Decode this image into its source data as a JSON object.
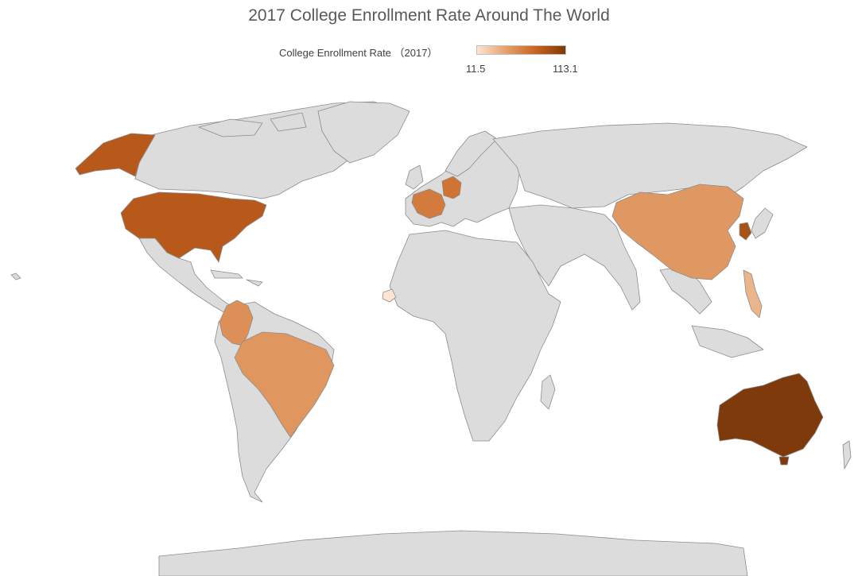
{
  "title": "2017 College Enrollment Rate Around The World",
  "legend": {
    "label": "College Enrollment Rate （2017）",
    "min_label": "11.5",
    "max_label": "113.1",
    "min": 11.5,
    "max": 113.1,
    "colors": [
      "#fde5d2",
      "#e3a06c",
      "#c9641f",
      "#7e3a0a"
    ]
  },
  "no_data_color": "#dcdcdc",
  "chart_data": {
    "type": "choropleth",
    "title": "2017 College Enrollment Rate Around The World",
    "color_scale": {
      "min": 11.5,
      "max": 113.1,
      "legend_title": "College Enrollment Rate （2017）"
    },
    "countries": [
      {
        "name": "Australia",
        "value": 113.1
      },
      {
        "name": "United States",
        "value": 88
      },
      {
        "name": "South Korea",
        "value": 94
      },
      {
        "name": "Germany",
        "value": 70
      },
      {
        "name": "France",
        "value": 66
      },
      {
        "name": "China",
        "value": 50
      },
      {
        "name": "Brazil",
        "value": 51
      },
      {
        "name": "Colombia",
        "value": 55
      },
      {
        "name": "Philippines",
        "value": 35
      },
      {
        "name": "Senegal",
        "value": 11.5
      }
    ]
  }
}
